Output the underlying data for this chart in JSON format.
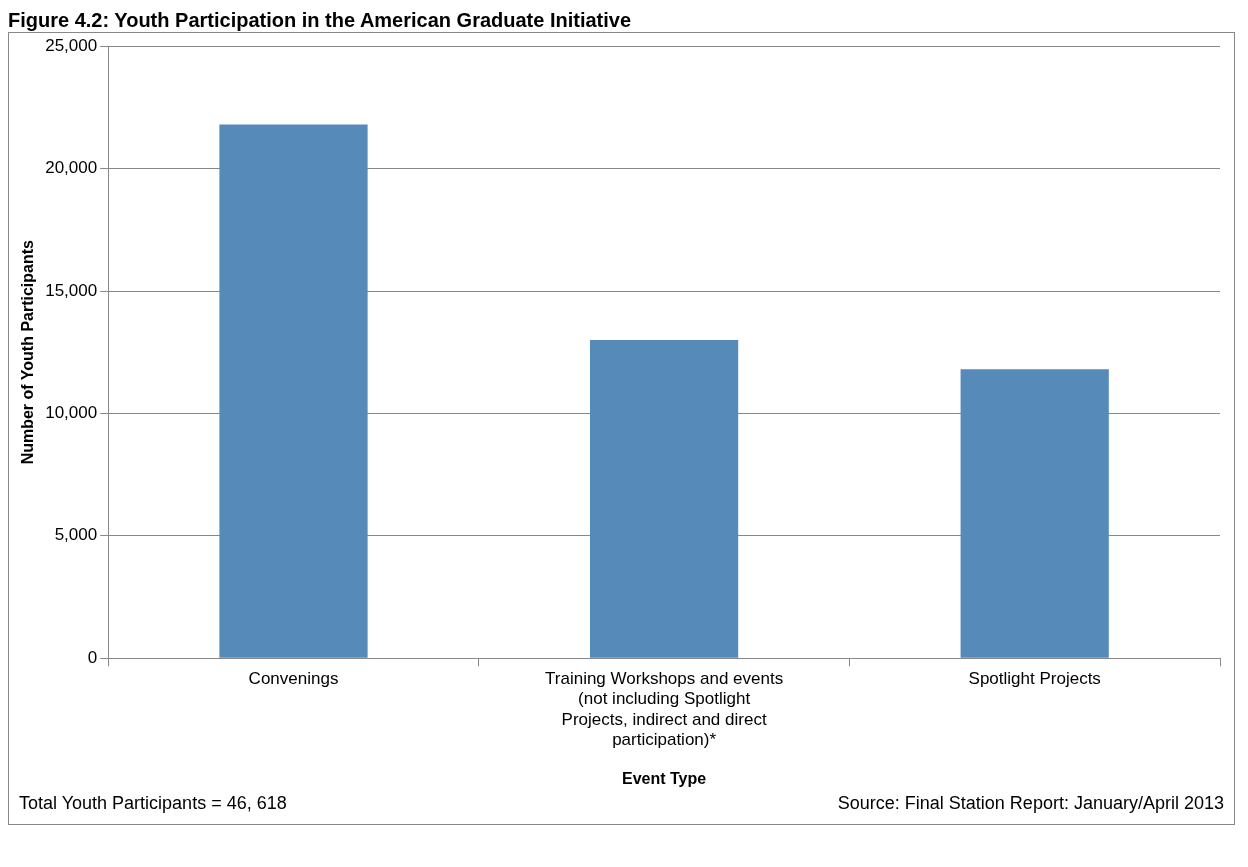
{
  "chart_data": {
    "type": "bar",
    "title": "Figure 4.2: Youth Participation in the American Graduate Initiative",
    "xlabel": "Event Type",
    "ylabel": "Number of Youth Participants",
    "categories": [
      "Convenings",
      "Training Workshops and events (not including Spotlight Projects, indirect and direct participation)*",
      "Spotlight Projects"
    ],
    "values": [
      21800,
      13000,
      11800
    ],
    "color": "#558ab9",
    "ylim": [
      0,
      25000
    ],
    "yticks": [
      {
        "value": 0,
        "label": "0"
      },
      {
        "value": 5000,
        "label": "5,000"
      },
      {
        "value": 10000,
        "label": "10,000"
      },
      {
        "value": 15000,
        "label": "15,000"
      },
      {
        "value": 20000,
        "label": "20,000"
      },
      {
        "value": 25000,
        "label": "25,000"
      }
    ],
    "grid": "y",
    "legend": false,
    "annotations": [
      "Total Youth Participants = 46, 618",
      "Source: Final Station Report: January/April 2013"
    ]
  }
}
